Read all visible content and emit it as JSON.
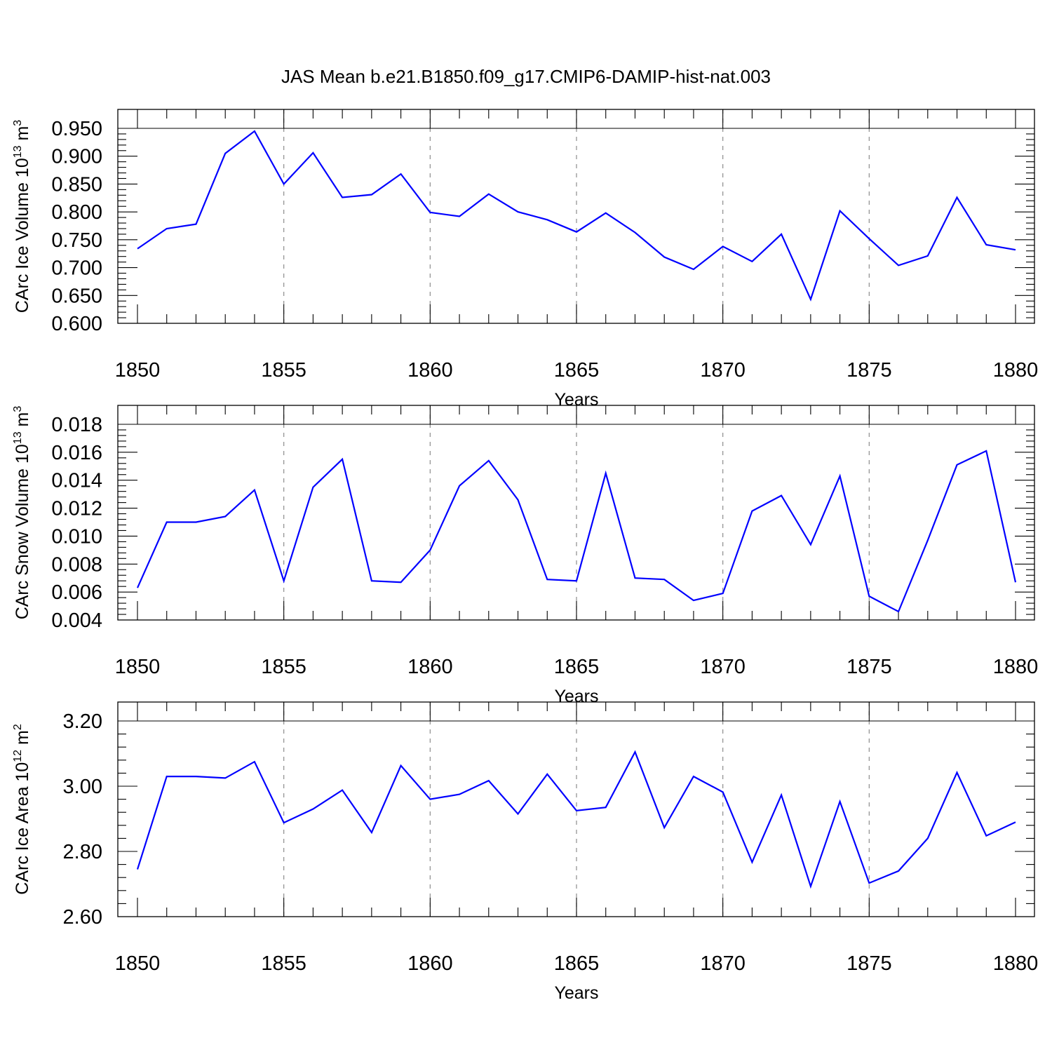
{
  "title": "JAS Mean b.e21.B1850.f09_g17.CMIP6-DAMIP-hist-nat.003",
  "colors": {
    "line": "#0000ff",
    "grid": "#8c8c8c",
    "axes": "#000000"
  },
  "chart_data": [
    {
      "type": "line",
      "ylabel": "CArc Ice Volume 10",
      "ylabel_sup": "13",
      "ylabel_unit": " m",
      "ylabel_unit_sup": "3",
      "xlabel": "Years",
      "xlim": [
        1850,
        1880
      ],
      "ylim": [
        0.6,
        0.95
      ],
      "x_ticks": [
        "1850",
        "1855",
        "1860",
        "1865",
        "1870",
        "1875",
        "1880"
      ],
      "y_ticks": [
        "0.600",
        "0.650",
        "0.700",
        "0.750",
        "0.800",
        "0.850",
        "0.900",
        "0.950"
      ],
      "grid": "dashed vertical at major x ticks",
      "x": [
        1850,
        1851,
        1852,
        1853,
        1854,
        1855,
        1856,
        1857,
        1858,
        1859,
        1860,
        1861,
        1862,
        1863,
        1864,
        1865,
        1866,
        1867,
        1868,
        1869,
        1870,
        1871,
        1872,
        1873,
        1874,
        1875,
        1876,
        1877,
        1878,
        1879,
        1880
      ],
      "values": [
        0.734,
        0.77,
        0.778,
        0.905,
        0.945,
        0.85,
        0.906,
        0.826,
        0.831,
        0.868,
        0.799,
        0.792,
        0.832,
        0.8,
        0.786,
        0.764,
        0.798,
        0.763,
        0.719,
        0.697,
        0.738,
        0.711,
        0.76,
        0.643,
        0.802,
        0.752,
        0.704,
        0.721,
        0.826,
        0.741,
        0.732
      ]
    },
    {
      "type": "line",
      "ylabel": "CArc Snow Volume 10",
      "ylabel_sup": "13",
      "ylabel_unit": " m",
      "ylabel_unit_sup": "3",
      "xlabel": "Years",
      "xlim": [
        1850,
        1880
      ],
      "ylim": [
        0.004,
        0.018
      ],
      "x_ticks": [
        "1850",
        "1855",
        "1860",
        "1865",
        "1870",
        "1875",
        "1880"
      ],
      "y_ticks": [
        "0.004",
        "0.006",
        "0.008",
        "0.010",
        "0.012",
        "0.014",
        "0.016",
        "0.018"
      ],
      "grid": "dashed vertical at major x ticks",
      "x": [
        1850,
        1851,
        1852,
        1853,
        1854,
        1855,
        1856,
        1857,
        1858,
        1859,
        1860,
        1861,
        1862,
        1863,
        1864,
        1865,
        1866,
        1867,
        1868,
        1869,
        1870,
        1871,
        1872,
        1873,
        1874,
        1875,
        1876,
        1877,
        1878,
        1879,
        1880
      ],
      "values": [
        0.0063,
        0.011,
        0.011,
        0.0114,
        0.0133,
        0.0068,
        0.0135,
        0.0155,
        0.0068,
        0.0067,
        0.009,
        0.0136,
        0.0154,
        0.0126,
        0.0069,
        0.0068,
        0.0145,
        0.007,
        0.0069,
        0.0054,
        0.0059,
        0.0118,
        0.0129,
        0.0094,
        0.0143,
        0.0057,
        0.0046,
        0.0097,
        0.0151,
        0.0161,
        0.0067
      ]
    },
    {
      "type": "line",
      "ylabel": "CArc Ice Area 10",
      "ylabel_sup": "12",
      "ylabel_unit": " m",
      "ylabel_unit_sup": "2",
      "xlabel": "Years",
      "xlim": [
        1850,
        1880
      ],
      "ylim": [
        2.6,
        3.2
      ],
      "x_ticks": [
        "1850",
        "1855",
        "1860",
        "1865",
        "1870",
        "1875",
        "1880"
      ],
      "y_ticks": [
        "2.60",
        "2.80",
        "3.00",
        "3.20"
      ],
      "grid": "dashed vertical at major x ticks",
      "x": [
        1850,
        1851,
        1852,
        1853,
        1854,
        1855,
        1856,
        1857,
        1858,
        1859,
        1860,
        1861,
        1862,
        1863,
        1864,
        1865,
        1866,
        1867,
        1868,
        1869,
        1870,
        1871,
        1872,
        1873,
        1874,
        1875,
        1876,
        1877,
        1878,
        1879,
        1880
      ],
      "values": [
        2.745,
        3.03,
        3.03,
        3.025,
        3.075,
        2.888,
        2.93,
        2.988,
        2.858,
        3.063,
        2.96,
        2.975,
        3.017,
        2.915,
        3.037,
        2.925,
        2.935,
        3.105,
        2.873,
        3.03,
        2.982,
        2.767,
        2.973,
        2.693,
        2.953,
        2.703,
        2.74,
        2.84,
        3.042,
        2.848,
        2.89
      ]
    }
  ]
}
